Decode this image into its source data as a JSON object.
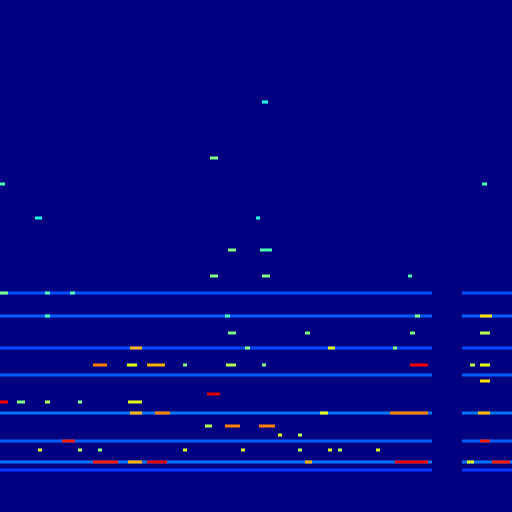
{
  "chart_data": {
    "type": "heatmap",
    "xlim": [
      0,
      512
    ],
    "ylim": [
      0,
      512
    ],
    "tick_labels": false,
    "grid": false,
    "color_range": [
      0,
      1
    ],
    "streaks": [
      [
        0,
        432,
        219,
        0.2
      ],
      [
        462,
        512,
        219,
        0.2
      ],
      [
        0,
        432,
        196,
        0.22
      ],
      [
        462,
        512,
        196,
        0.22
      ],
      [
        0,
        432,
        164,
        0.2
      ],
      [
        462,
        512,
        164,
        0.2
      ],
      [
        0,
        432,
        137,
        0.22
      ],
      [
        462,
        512,
        137,
        0.22
      ],
      [
        0,
        432,
        99,
        0.24
      ],
      [
        462,
        512,
        99,
        0.24
      ],
      [
        0,
        432,
        71,
        0.22
      ],
      [
        462,
        512,
        71,
        0.22
      ],
      [
        0,
        432,
        50,
        0.24
      ],
      [
        462,
        512,
        50,
        0.24
      ],
      [
        0,
        432,
        42,
        0.18
      ],
      [
        462,
        512,
        42,
        0.18
      ],
      [
        93,
        118,
        50,
        0.85
      ],
      [
        128,
        142,
        50,
        0.7
      ],
      [
        147,
        167,
        50,
        0.9
      ],
      [
        305,
        312,
        50,
        0.7
      ],
      [
        395,
        428,
        50,
        0.88
      ],
      [
        467,
        474,
        50,
        0.6
      ],
      [
        492,
        510,
        50,
        0.85
      ],
      [
        62,
        75,
        71,
        0.85
      ],
      [
        480,
        490,
        71,
        0.85
      ],
      [
        205,
        212,
        86,
        0.55
      ],
      [
        225,
        240,
        86,
        0.75
      ],
      [
        259,
        275,
        86,
        0.75
      ],
      [
        130,
        142,
        99,
        0.7
      ],
      [
        155,
        170,
        99,
        0.75
      ],
      [
        320,
        328,
        99,
        0.6
      ],
      [
        390,
        428,
        99,
        0.75
      ],
      [
        478,
        490,
        99,
        0.7
      ],
      [
        0,
        8,
        110,
        0.88
      ],
      [
        17,
        25,
        110,
        0.5
      ],
      [
        45,
        50,
        110,
        0.55
      ],
      [
        78,
        82,
        110,
        0.5
      ],
      [
        128,
        142,
        110,
        0.6
      ],
      [
        207,
        220,
        118,
        0.9
      ],
      [
        480,
        490,
        131,
        0.65
      ],
      [
        93,
        107,
        147,
        0.75
      ],
      [
        127,
        137,
        147,
        0.6
      ],
      [
        147,
        165,
        147,
        0.7
      ],
      [
        183,
        187,
        147,
        0.5
      ],
      [
        226,
        236,
        147,
        0.55
      ],
      [
        262,
        266,
        147,
        0.5
      ],
      [
        410,
        428,
        147,
        0.88
      ],
      [
        470,
        475,
        147,
        0.55
      ],
      [
        480,
        490,
        147,
        0.6
      ],
      [
        130,
        142,
        164,
        0.7
      ],
      [
        245,
        250,
        164,
        0.5
      ],
      [
        328,
        335,
        164,
        0.6
      ],
      [
        393,
        397,
        164,
        0.5
      ],
      [
        228,
        236,
        179,
        0.5
      ],
      [
        305,
        310,
        179,
        0.5
      ],
      [
        410,
        415,
        179,
        0.5
      ],
      [
        480,
        490,
        179,
        0.55
      ],
      [
        45,
        50,
        196,
        0.45
      ],
      [
        225,
        230,
        196,
        0.45
      ],
      [
        415,
        420,
        196,
        0.5
      ],
      [
        480,
        492,
        196,
        0.65
      ],
      [
        0,
        8,
        219,
        0.5
      ],
      [
        45,
        50,
        219,
        0.45
      ],
      [
        70,
        75,
        219,
        0.45
      ],
      [
        210,
        218,
        236,
        0.5
      ],
      [
        262,
        270,
        236,
        0.5
      ],
      [
        408,
        412,
        236,
        0.45
      ],
      [
        228,
        236,
        262,
        0.5
      ],
      [
        260,
        272,
        262,
        0.45
      ],
      [
        35,
        42,
        294,
        0.4
      ],
      [
        256,
        260,
        294,
        0.4
      ],
      [
        0,
        5,
        328,
        0.45
      ],
      [
        482,
        487,
        328,
        0.45
      ],
      [
        210,
        218,
        354,
        0.5
      ],
      [
        262,
        268,
        410,
        0.4
      ],
      [
        38,
        42,
        62,
        0.6
      ],
      [
        78,
        82,
        62,
        0.55
      ],
      [
        98,
        102,
        62,
        0.5
      ],
      [
        183,
        187,
        62,
        0.6
      ],
      [
        241,
        245,
        62,
        0.6
      ],
      [
        298,
        302,
        62,
        0.55
      ],
      [
        328,
        332,
        62,
        0.6
      ],
      [
        338,
        342,
        62,
        0.55
      ],
      [
        376,
        380,
        62,
        0.6
      ],
      [
        278,
        282,
        77,
        0.6
      ],
      [
        298,
        302,
        77,
        0.55
      ]
    ]
  }
}
